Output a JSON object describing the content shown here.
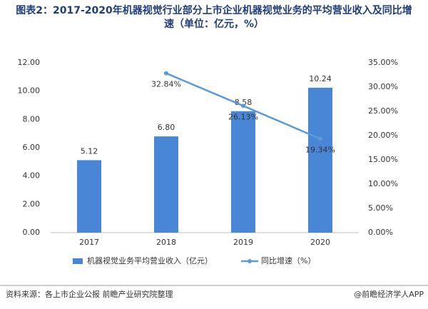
{
  "chart_data": {
    "type": "bar",
    "title": "图表2：2017-2020年机器视觉行业部分上市企业机器视觉业务的平均营业收入及同比增速（单位：亿元，%）",
    "source": "资料来源：各上市企业公报 前瞻产业研究院整理",
    "brand": "@前瞻经济学人APP",
    "categories": [
      "2017",
      "2018",
      "2019",
      "2020"
    ],
    "series": [
      {
        "name": "机器视觉业务平均营业收入（亿元）",
        "type": "bar",
        "color": "#4a86d6",
        "values": [
          5.12,
          6.8,
          8.58,
          10.24
        ],
        "value_labels": [
          "5.12",
          "6.80",
          "8.58",
          "10.24"
        ]
      },
      {
        "name": "同比增速（%）",
        "type": "line",
        "axis": "y2",
        "color": "#5b9bd5",
        "values": [
          null,
          32.84,
          26.13,
          19.34
        ],
        "value_labels": [
          null,
          "32.84%",
          "26.13%",
          "19.34%"
        ]
      }
    ],
    "ylim": [
      0,
      12
    ],
    "yticks": [
      {
        "value": 0,
        "label": "0.00"
      },
      {
        "value": 2,
        "label": "2.00"
      },
      {
        "value": 4,
        "label": "4.00"
      },
      {
        "value": 6,
        "label": "6.00"
      },
      {
        "value": 8,
        "label": "8.00"
      },
      {
        "value": 10,
        "label": "10.00"
      },
      {
        "value": 12,
        "label": "12.00"
      }
    ],
    "y2lim": [
      0,
      35
    ],
    "y2ticks": [
      {
        "value": 0,
        "label": "0.00%"
      },
      {
        "value": 5,
        "label": "5.00%"
      },
      {
        "value": 10,
        "label": "10.00%"
      },
      {
        "value": 15,
        "label": "15.00%"
      },
      {
        "value": 20,
        "label": "20.00%"
      },
      {
        "value": 25,
        "label": "25.00%"
      },
      {
        "value": 30,
        "label": "30.00%"
      },
      {
        "value": 35,
        "label": "35.00%"
      }
    ],
    "legend": "bottom"
  }
}
